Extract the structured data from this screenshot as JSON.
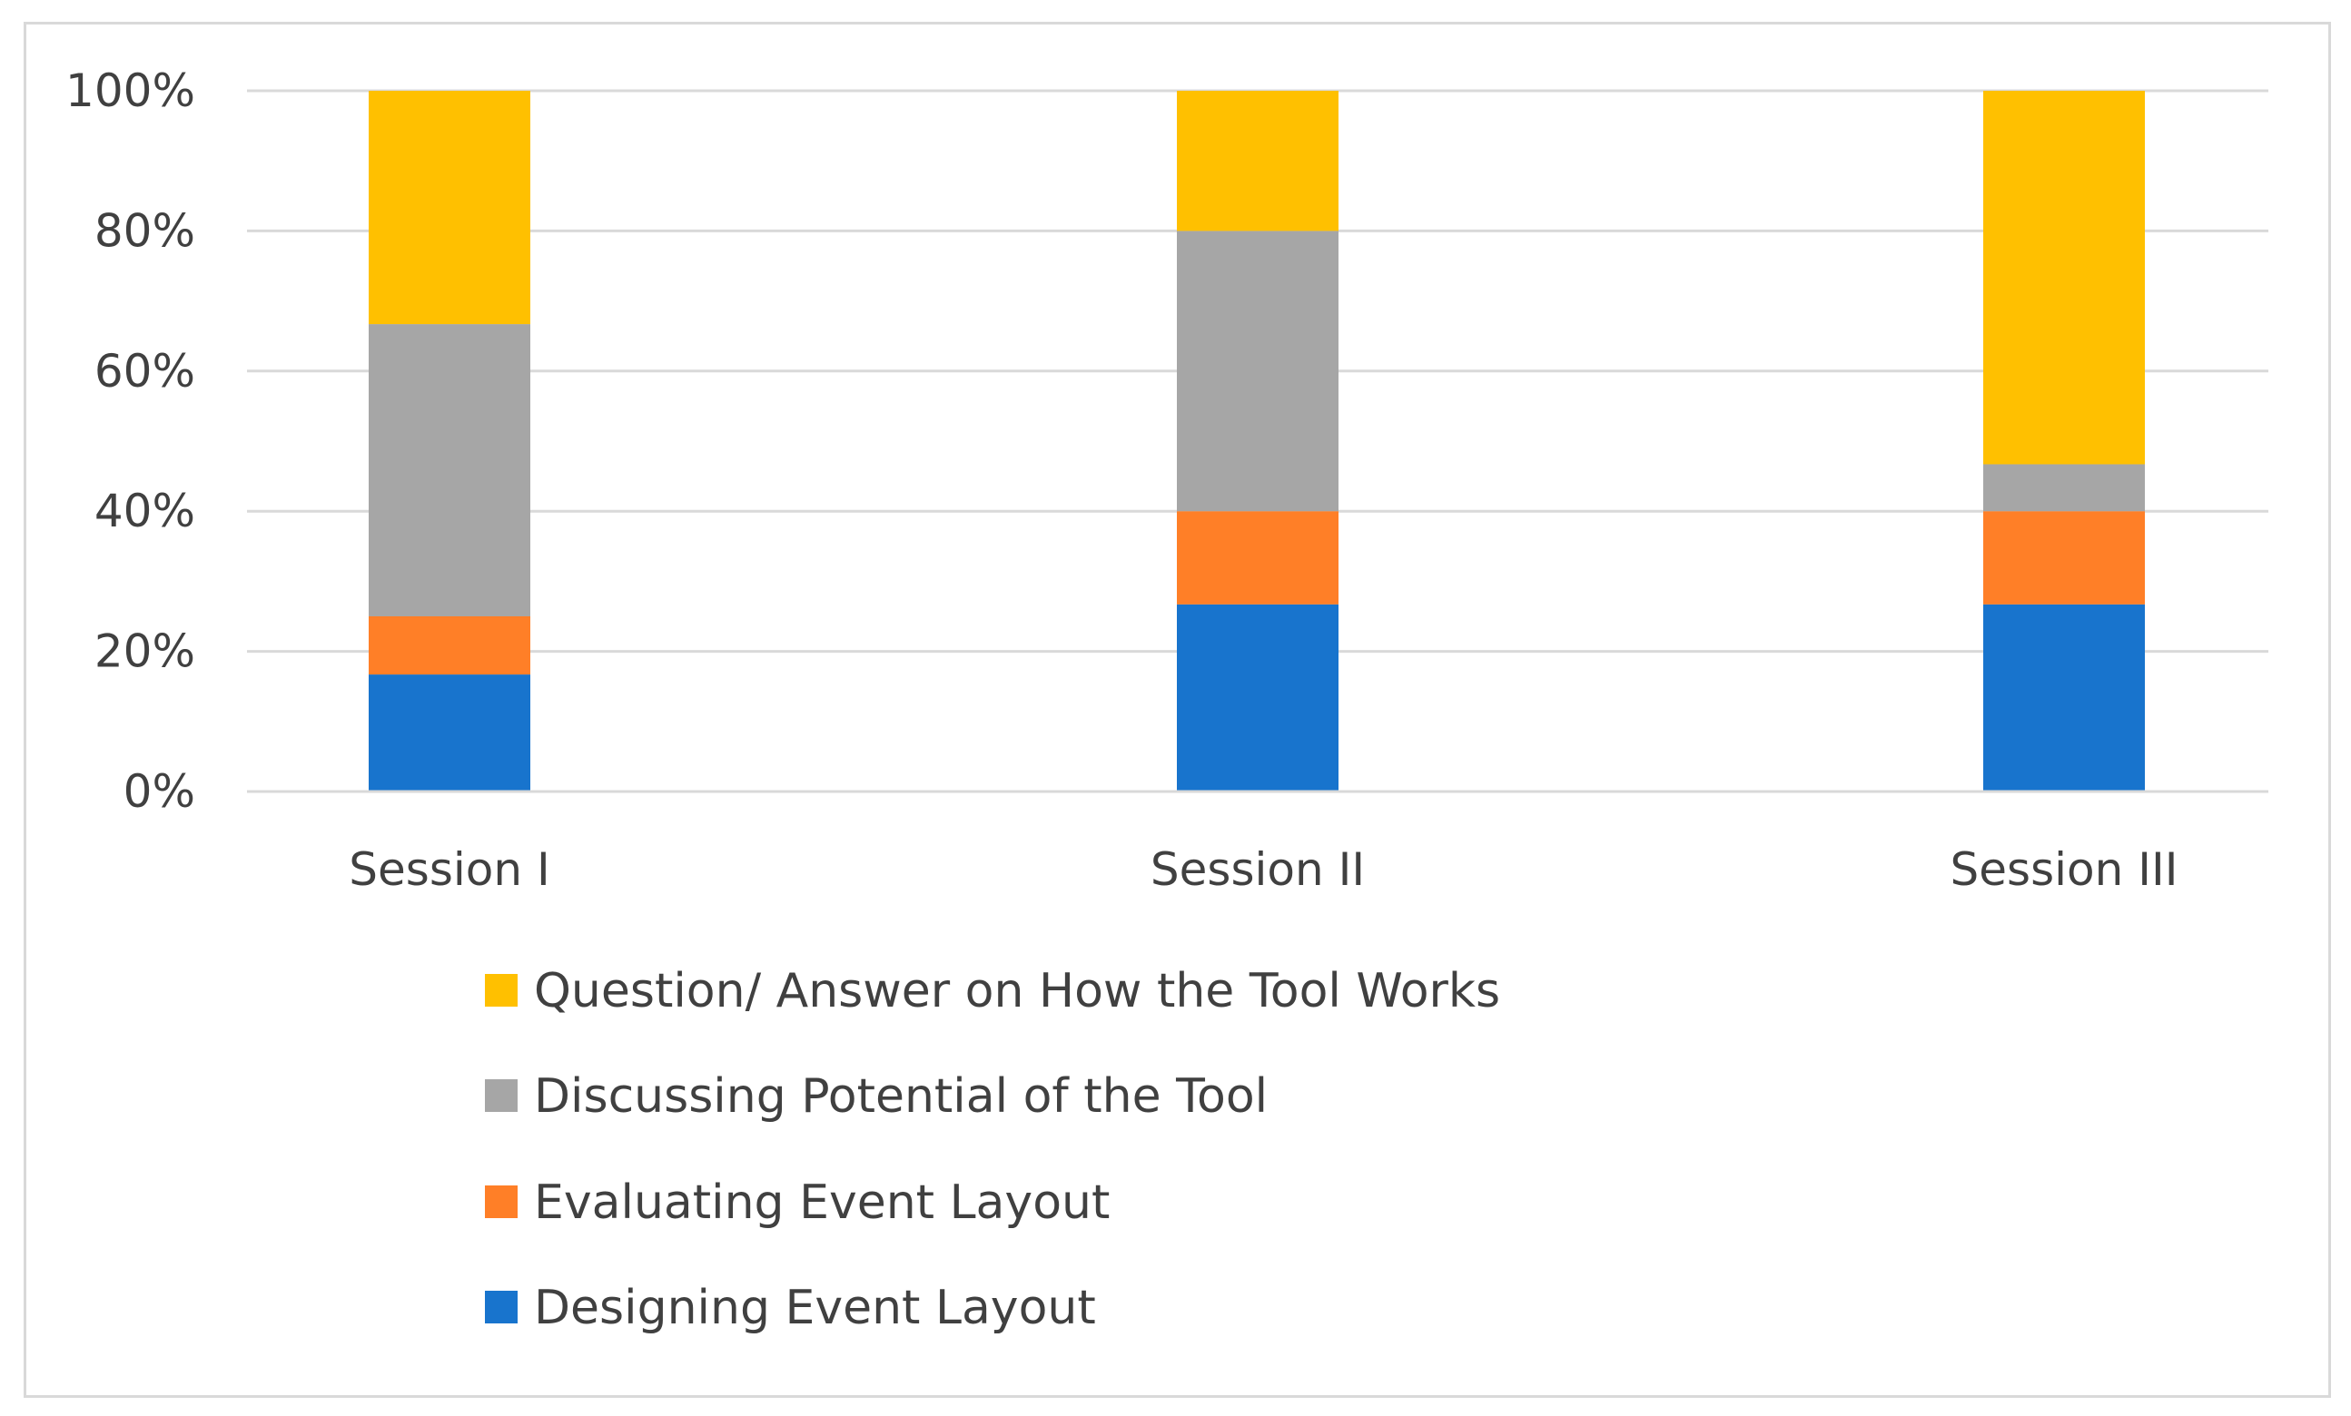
{
  "chart_data": {
    "type": "bar",
    "stacked": true,
    "percent_stacked": true,
    "title": "",
    "xlabel": "",
    "ylabel": "",
    "categories": [
      "Session I",
      "Session II",
      "Session III"
    ],
    "ylim": [
      0,
      100
    ],
    "y_ticks": [
      0,
      20,
      40,
      60,
      80,
      100
    ],
    "y_tick_labels": [
      "0%",
      "20%",
      "40%",
      "60%",
      "80%",
      "100%"
    ],
    "grid": true,
    "legend_position": "bottom",
    "series": [
      {
        "name": "Designing Event Layout",
        "color": "#1874CD",
        "values": [
          16.7,
          26.7,
          26.7
        ]
      },
      {
        "name": "Evaluating Event Layout",
        "color": "#FF7F27",
        "values": [
          8.3,
          13.3,
          13.3
        ]
      },
      {
        "name": "Discussing Potential of the Tool",
        "color": "#A6A6A6",
        "values": [
          41.7,
          40.0,
          6.7
        ]
      },
      {
        "name": "Question/ Answer on How the Tool Works",
        "color": "#FFC000",
        "values": [
          33.3,
          20.0,
          53.3
        ]
      }
    ],
    "legend_order": [
      3,
      2,
      1,
      0
    ]
  }
}
